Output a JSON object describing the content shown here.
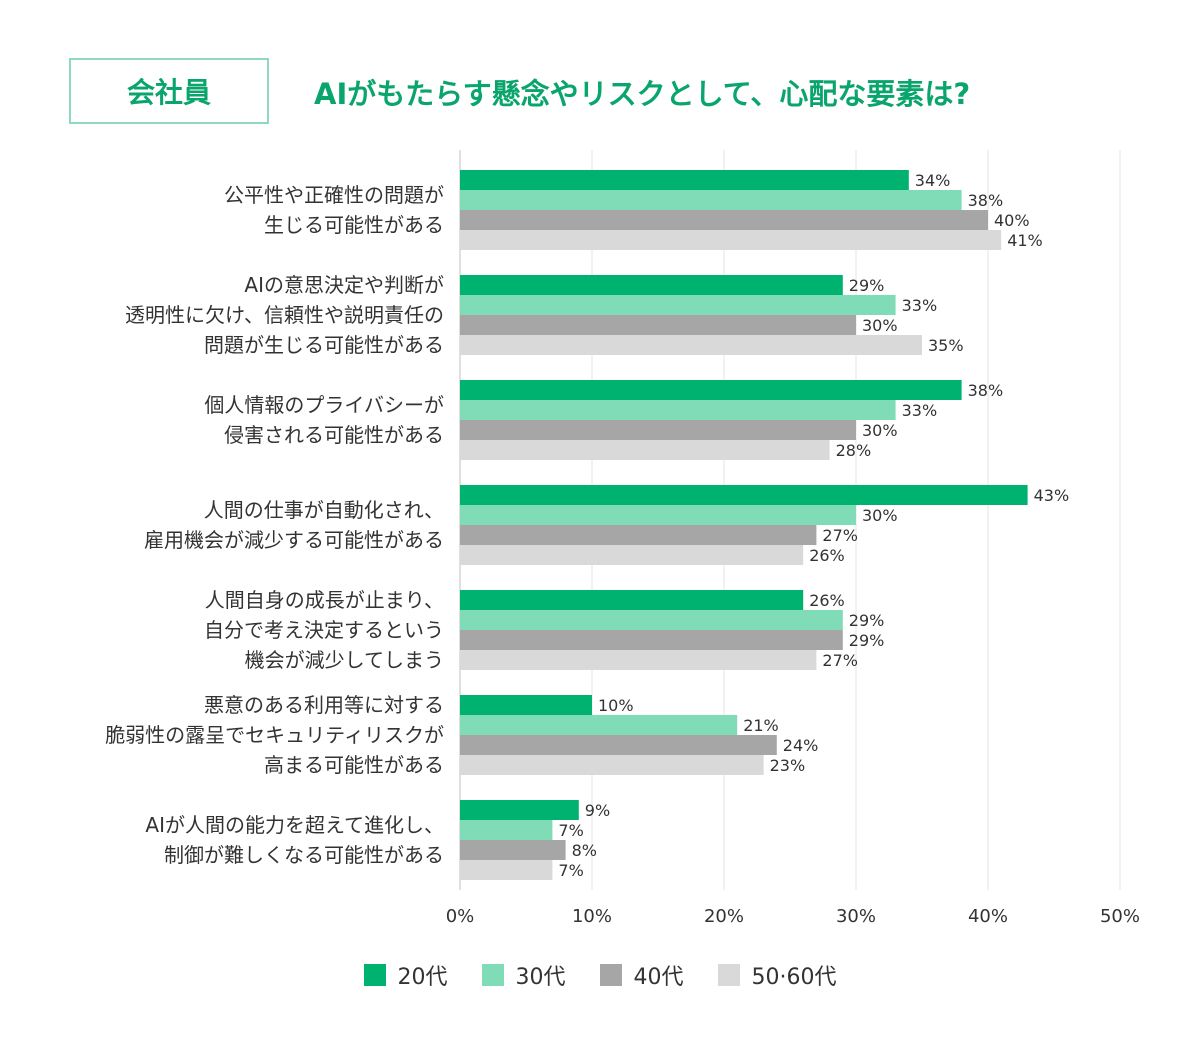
{
  "badge": "会社員",
  "title": "AIがもたらす懸念やリスクとして、心配な要素は?",
  "chart_data": {
    "type": "bar",
    "orientation": "horizontal",
    "categories": [
      [
        "公平性や正確性の問題が",
        "生じる可能性がある"
      ],
      [
        "AIの意思決定や判断が",
        "透明性に欠け、信頼性や説明責任の",
        "問題が生じる可能性がある"
      ],
      [
        "個人情報のプライバシーが",
        "侵害される可能性がある"
      ],
      [
        "人間の仕事が自動化され、",
        "雇用機会が減少する可能性がある"
      ],
      [
        "人間自身の成長が止まり、",
        "自分で考え決定するという",
        "機会が減少してしまう"
      ],
      [
        "悪意のある利用等に対する",
        "脆弱性の露呈でセキュリティリスクが",
        "高まる可能性がある"
      ],
      [
        "AIが人間の能力を超えて進化し、",
        "制御が難しくなる可能性がある"
      ]
    ],
    "series": [
      {
        "name": "20代",
        "color": "#00b26f",
        "values": [
          34,
          29,
          38,
          43,
          26,
          10,
          9
        ]
      },
      {
        "name": "30代",
        "color": "#80dbb7",
        "values": [
          38,
          33,
          33,
          30,
          29,
          21,
          7
        ]
      },
      {
        "name": "40代",
        "color": "#a6a6a6",
        "values": [
          40,
          30,
          30,
          27,
          29,
          24,
          8
        ]
      },
      {
        "name": "50·60代",
        "color": "#d9d9d9",
        "values": [
          41,
          35,
          28,
          26,
          27,
          23,
          7
        ]
      }
    ],
    "xlim": [
      0,
      50
    ],
    "xticks": [
      0,
      10,
      20,
      30,
      40,
      50
    ],
    "tick_suffix": "%",
    "value_suffix": "%",
    "grid": true,
    "legend": "bottom"
  }
}
